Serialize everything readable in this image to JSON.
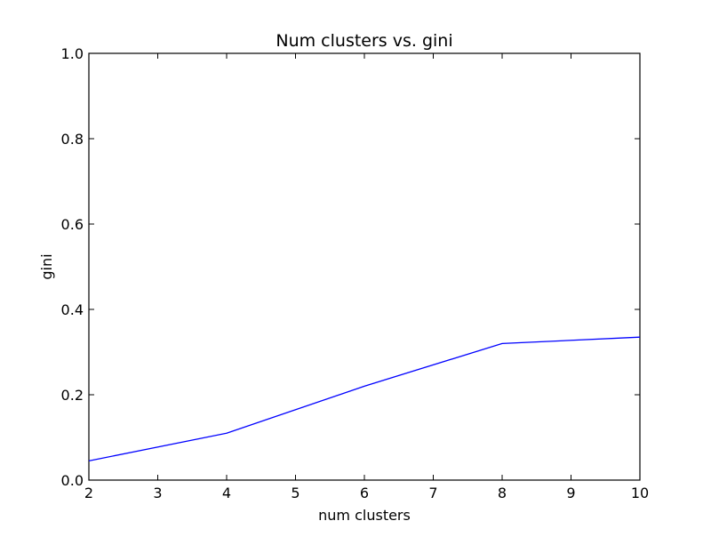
{
  "chart_data": {
    "type": "line",
    "title": "Num clusters vs. gini",
    "xlabel": "num clusters",
    "ylabel": "gini",
    "xlim": [
      2,
      10
    ],
    "ylim": [
      0.0,
      1.0
    ],
    "x_ticks": [
      "2",
      "3",
      "4",
      "5",
      "6",
      "7",
      "8",
      "9",
      "10"
    ],
    "y_ticks": [
      "0.0",
      "0.2",
      "0.4",
      "0.6",
      "0.8",
      "1.0"
    ],
    "grid": false,
    "series": [
      {
        "color": "#0000ff",
        "x": [
          2,
          4,
          6,
          8,
          10
        ],
        "y": [
          0.045,
          0.11,
          0.22,
          0.32,
          0.335
        ]
      }
    ]
  }
}
